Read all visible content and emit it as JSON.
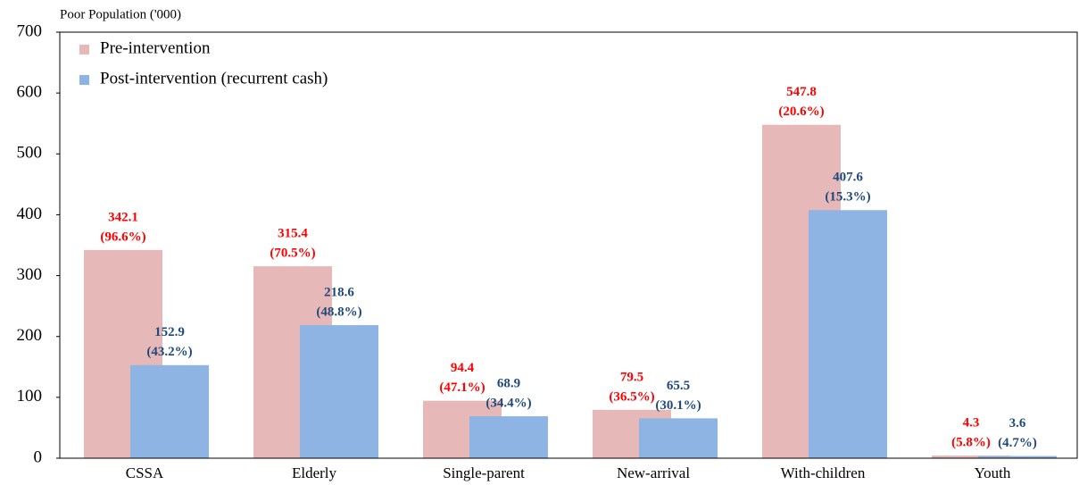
{
  "chart_data": {
    "type": "bar",
    "y_label": "Poor Population ('000)",
    "categories": [
      "CSSA",
      "Elderly",
      "Single-parent",
      "New-arrival",
      "With-children",
      "Youth"
    ],
    "series": [
      {
        "name": "Pre-intervention",
        "color": "#e6b8b7",
        "label_color": "#ff0000",
        "values": [
          342.1,
          315.4,
          94.4,
          79.5,
          547.8,
          4.3
        ],
        "share_labels": [
          "(96.6%)",
          "(70.5%)",
          "(47.1%)",
          "(36.5%)",
          "(20.6%)",
          "(5.8%)"
        ]
      },
      {
        "name": "Post-intervention (recurrent cash)",
        "color": "#8db4e2",
        "label_color": "#1f497d",
        "values": [
          152.9,
          218.6,
          68.9,
          65.5,
          407.6,
          3.6
        ],
        "share_labels": [
          "(43.2%)",
          "(48.8%)",
          "(34.4%)",
          "(30.1%)",
          "(15.3%)",
          "(4.7%)"
        ]
      }
    ],
    "ylim": [
      0,
      700
    ],
    "yticks": [
      0,
      100,
      200,
      300,
      400,
      500,
      600,
      700
    ],
    "legend": "top-left"
  }
}
